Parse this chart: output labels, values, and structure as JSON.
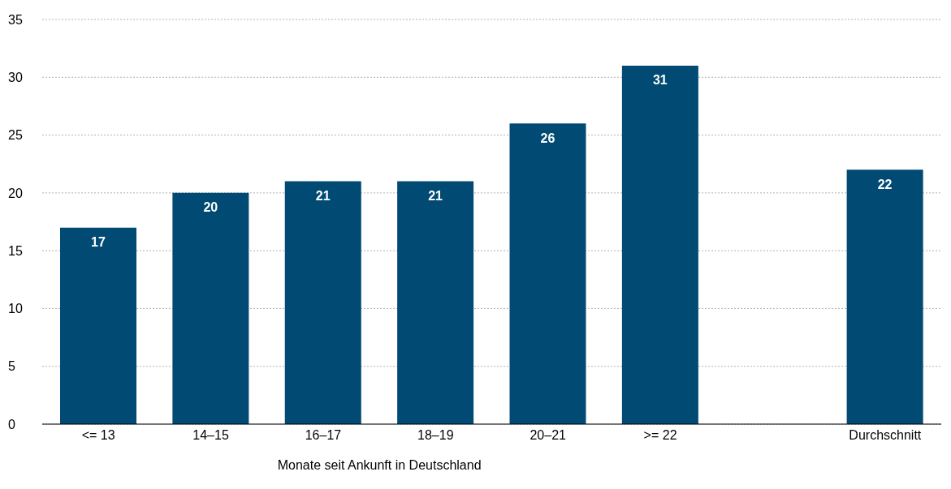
{
  "chart_data": {
    "type": "bar",
    "xlabel": "Monate seit Ankunft in Deutschland",
    "categories": [
      "<= 13",
      "14–15",
      "16–17",
      "18–19",
      "20–21",
      ">= 22",
      null,
      "Durchschnitt"
    ],
    "values": [
      17,
      20,
      21,
      21,
      26,
      31,
      null,
      22
    ],
    "color": "#004a74",
    "ylim": [
      0,
      35
    ],
    "yticks": [
      0,
      5,
      10,
      15,
      20,
      25,
      30,
      35
    ],
    "grid": "y",
    "data_labels": true
  }
}
